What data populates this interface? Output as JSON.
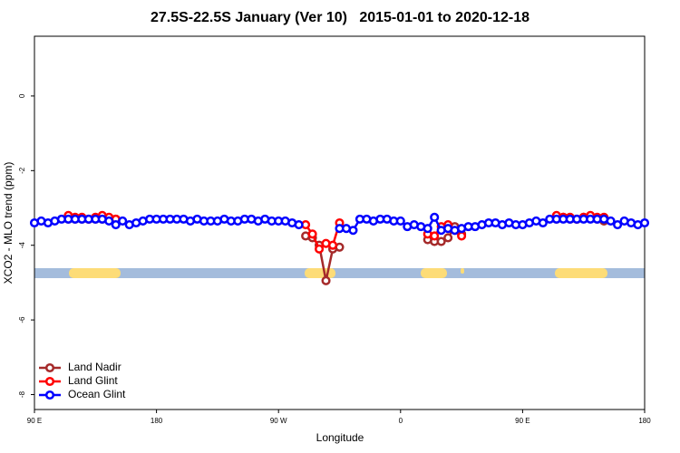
{
  "chart_data": {
    "type": "line",
    "title": "27.5S-22.5S January (Ver 10)   2015-01-01 to 2020-12-18",
    "x_label": "Longitude",
    "y_label": "XCO2 - MLO trend (ppm)",
    "xlim": [
      90,
      540
    ],
    "ylim": [
      -8.4,
      1.6
    ],
    "xticks": [
      {
        "value": 90,
        "label": "90 E"
      },
      {
        "value": 180,
        "label": "180"
      },
      {
        "value": 270,
        "label": "90 W"
      },
      {
        "value": 360,
        "label": "0"
      },
      {
        "value": 450,
        "label": "90 E"
      },
      {
        "value": 540,
        "label": "180"
      }
    ],
    "yticks": [
      0,
      -2,
      -4,
      -6,
      -8
    ],
    "legend": "bottom-left",
    "series": [
      {
        "name": "Land Nadir",
        "color": "#a52a2a",
        "x": [
          115,
          120,
          125,
          130,
          135,
          140,
          145,
          150,
          155,
          290,
          295,
          300,
          305,
          310,
          315,
          320,
          380,
          385,
          390,
          395,
          400,
          405,
          410,
          475,
          480,
          485,
          490,
          495,
          500,
          505,
          510
        ],
        "values": [
          -3.3,
          -3.3,
          -3.3,
          -3.3,
          -3.3,
          -3.3,
          -3.3,
          -3.3,
          null,
          -3.75,
          -3.8,
          -4.0,
          -4.95,
          -4.1,
          -4.05,
          null,
          -3.85,
          -3.9,
          -3.9,
          -3.8,
          -3.5,
          -3.7,
          null,
          -3.3,
          -3.25,
          -3.3,
          -3.3,
          -3.25,
          -3.25,
          -3.3,
          -3.35
        ]
      },
      {
        "name": "Land Glint",
        "color": "#ff0000",
        "x": [
          115,
          120,
          125,
          130,
          135,
          140,
          145,
          150,
          155,
          290,
          295,
          300,
          305,
          310,
          315,
          320,
          380,
          385,
          390,
          395,
          400,
          405,
          410,
          475,
          480,
          485,
          490,
          495,
          500,
          505,
          510
        ],
        "values": [
          -3.2,
          -3.25,
          -3.25,
          -3.3,
          -3.25,
          -3.2,
          -3.25,
          -3.3,
          null,
          -3.45,
          -3.7,
          -4.1,
          -3.95,
          -4.0,
          -3.4,
          null,
          -3.7,
          -3.75,
          -3.5,
          -3.45,
          -3.6,
          -3.75,
          null,
          -3.2,
          -3.25,
          -3.25,
          -3.3,
          -3.25,
          -3.2,
          -3.25,
          -3.25
        ]
      },
      {
        "name": "Ocean Glint",
        "color": "#0000ff",
        "x": [
          90,
          95,
          100,
          105,
          110,
          115,
          120,
          125,
          130,
          135,
          140,
          145,
          150,
          155,
          160,
          165,
          170,
          175,
          180,
          185,
          190,
          195,
          200,
          205,
          210,
          215,
          220,
          225,
          230,
          235,
          240,
          245,
          250,
          255,
          260,
          265,
          270,
          275,
          280,
          285,
          290,
          295,
          300,
          305,
          310,
          315,
          320,
          325,
          330,
          335,
          340,
          345,
          350,
          355,
          360,
          365,
          370,
          375,
          380,
          385,
          390,
          395,
          400,
          405,
          410,
          415,
          420,
          425,
          430,
          435,
          440,
          445,
          450,
          455,
          460,
          465,
          470,
          475,
          480,
          485,
          490,
          495,
          500,
          505,
          510,
          515,
          520,
          525,
          530,
          535,
          540
        ],
        "values": [
          -3.4,
          -3.35,
          -3.4,
          -3.35,
          -3.3,
          -3.3,
          -3.3,
          -3.3,
          -3.3,
          -3.3,
          -3.3,
          -3.35,
          -3.45,
          -3.35,
          -3.45,
          -3.4,
          -3.35,
          -3.3,
          -3.3,
          -3.3,
          -3.3,
          -3.3,
          -3.3,
          -3.35,
          -3.3,
          -3.35,
          -3.35,
          -3.35,
          -3.3,
          -3.35,
          -3.35,
          -3.3,
          -3.3,
          -3.35,
          -3.3,
          -3.35,
          -3.35,
          -3.35,
          -3.4,
          -3.45,
          null,
          null,
          null,
          null,
          null,
          -3.55,
          -3.55,
          -3.6,
          -3.3,
          -3.3,
          -3.35,
          -3.3,
          -3.3,
          -3.35,
          -3.35,
          -3.5,
          -3.45,
          -3.5,
          -3.55,
          -3.25,
          -3.6,
          -3.55,
          -3.6,
          -3.55,
          -3.5,
          -3.5,
          -3.45,
          -3.4,
          -3.4,
          -3.45,
          -3.4,
          -3.45,
          -3.45,
          -3.4,
          -3.35,
          -3.4,
          -3.3,
          -3.3,
          -3.3,
          -3.3,
          -3.3,
          -3.3,
          -3.3,
          -3.3,
          -3.3,
          -3.35,
          -3.45,
          -3.35,
          -3.4,
          -3.45,
          -3.4
        ]
      }
    ]
  }
}
